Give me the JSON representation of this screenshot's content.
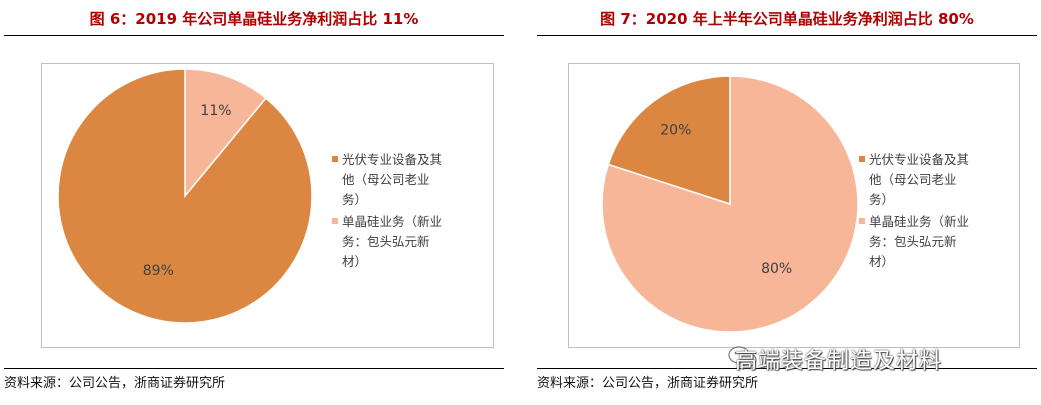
{
  "panels": [
    {
      "title": "图 6：2019 年公司单晶硅业务净利润占比 11%",
      "source": "资料来源：公司公告，浙商证券研究所"
    },
    {
      "title": "图 7：2020 年上半年公司单晶硅业务净利润占比 80%",
      "source": "资料来源：公司公告，浙商证券研究所"
    }
  ],
  "watermark": "高端装备制造及材料",
  "colors": {
    "slice_dark": "#DB8741",
    "slice_light": "#F7B698",
    "title_red": "#B00000"
  },
  "chart_data": [
    {
      "type": "pie",
      "title": "图 6：2019 年公司单晶硅业务净利润占比 11%",
      "slices": [
        {
          "label": "光伏专业设备及其他（母公司老业务）",
          "value": 89,
          "display": "89%",
          "color": "#DB8741"
        },
        {
          "label": "单晶硅业务（新业务：包头弘元新材）",
          "value": 11,
          "display": "11%",
          "color": "#F7B698"
        }
      ],
      "legend_position": "right"
    },
    {
      "type": "pie",
      "title": "图 7：2020 年上半年公司单晶硅业务净利润占比 80%",
      "slices": [
        {
          "label": "光伏专业设备及其他（母公司老业务）",
          "value": 20,
          "display": "20%",
          "color": "#DB8741"
        },
        {
          "label": "单晶硅业务（新业务：包头弘元新材）",
          "value": 80,
          "display": "80%",
          "color": "#F7B698"
        }
      ],
      "legend_position": "right"
    }
  ],
  "legend": [
    {
      "lines": [
        "光伏专业设备及其",
        "他（母公司老业",
        "务）"
      ]
    },
    {
      "lines": [
        "单晶硅业务（新业",
        "务：包头弘元新",
        "材）"
      ]
    }
  ]
}
